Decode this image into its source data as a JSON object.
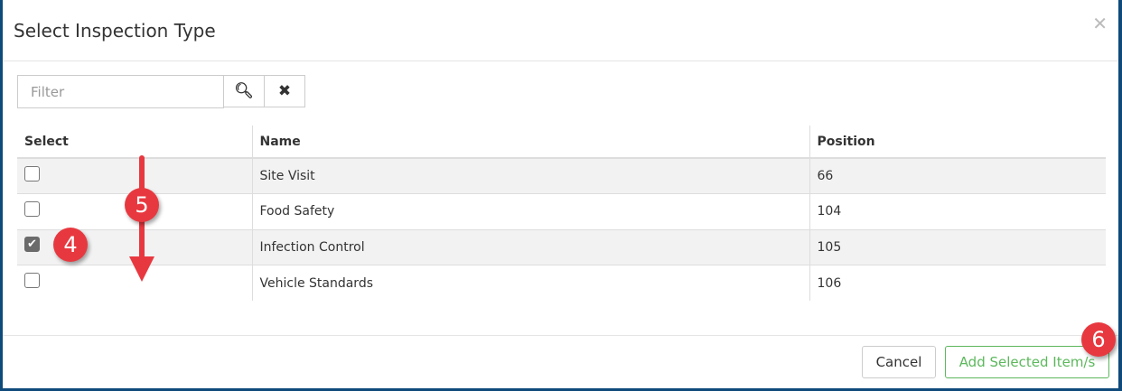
{
  "dialog": {
    "title": "Select Inspection Type",
    "close_icon": "times-icon"
  },
  "filter": {
    "placeholder": "Filter",
    "value": "",
    "search_icon": "search-icon",
    "clear_icon": "times-icon"
  },
  "table": {
    "columns": [
      "Select",
      "Name",
      "Position"
    ],
    "rows": [
      {
        "selected": false,
        "name": "Site Visit",
        "position": "66"
      },
      {
        "selected": false,
        "name": "Food Safety",
        "position": "104"
      },
      {
        "selected": true,
        "name": "Infection Control",
        "position": "105"
      },
      {
        "selected": false,
        "name": "Vehicle Standards",
        "position": "106"
      }
    ]
  },
  "footer": {
    "cancel_label": "Cancel",
    "add_label": "Add Selected Item/s"
  },
  "annotations": {
    "step4": "4",
    "step5": "5",
    "step6": "6",
    "color": "#e8383f"
  },
  "colors": {
    "frame": "#0f4a7a",
    "primary": "#5cb85c"
  }
}
